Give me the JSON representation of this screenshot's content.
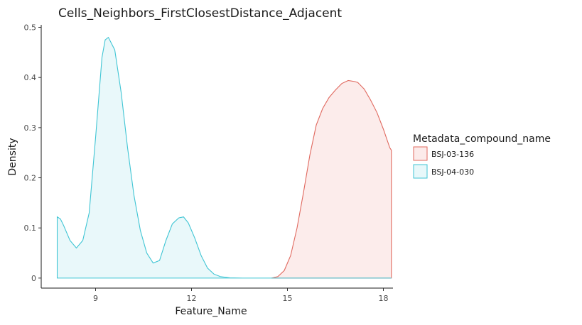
{
  "chart_data": {
    "type": "area",
    "title": "Cells_Neighbors_FirstClosestDistance_Adjacent",
    "xlabel": "Feature_Name",
    "ylabel": "Density",
    "xlim": [
      7.3,
      18.3
    ],
    "ylim": [
      -0.02,
      0.505
    ],
    "x_ticks": [
      9,
      12,
      15,
      18
    ],
    "y_ticks": [
      0,
      0.1,
      0.2,
      0.3,
      0.4,
      0.5
    ],
    "x_tick_labels": [
      "9",
      "12",
      "15",
      "18"
    ],
    "y_tick_labels": [
      "0",
      "0.1",
      "0.2",
      "0.3",
      "0.4",
      "0.5"
    ],
    "grid": false,
    "legend": {
      "title": "Metadata_compound_name",
      "position": "right"
    },
    "series": [
      {
        "name": "BSJ-03-136",
        "line_color": "#E0695F",
        "fill_color": "#FCEBEA",
        "x": [
          14.5,
          14.7,
          14.9,
          15.1,
          15.3,
          15.5,
          15.7,
          15.9,
          16.1,
          16.3,
          16.5,
          16.7,
          16.9,
          17.1,
          17.2,
          17.4,
          17.6,
          17.8,
          18.0,
          18.2,
          18.25
        ],
        "values": [
          0.0,
          0.003,
          0.015,
          0.045,
          0.1,
          0.17,
          0.245,
          0.305,
          0.338,
          0.36,
          0.375,
          0.388,
          0.394,
          0.392,
          0.39,
          0.377,
          0.355,
          0.33,
          0.297,
          0.26,
          0.255
        ]
      },
      {
        "name": "BSJ-04-030",
        "line_color": "#3FC5D4",
        "fill_color": "#E8F8FA",
        "x": [
          7.8,
          7.9,
          8.0,
          8.2,
          8.4,
          8.6,
          8.8,
          9.0,
          9.2,
          9.3,
          9.4,
          9.6,
          9.8,
          10.0,
          10.2,
          10.4,
          10.6,
          10.8,
          11.0,
          11.2,
          11.4,
          11.6,
          11.75,
          11.9,
          12.1,
          12.3,
          12.5,
          12.7,
          12.9,
          13.2,
          13.6,
          14.0,
          15.0,
          16.0,
          17.0,
          18.0,
          18.25
        ],
        "values": [
          0.122,
          0.118,
          0.105,
          0.075,
          0.06,
          0.075,
          0.13,
          0.28,
          0.44,
          0.475,
          0.48,
          0.455,
          0.37,
          0.26,
          0.165,
          0.095,
          0.05,
          0.03,
          0.035,
          0.075,
          0.108,
          0.12,
          0.122,
          0.11,
          0.08,
          0.045,
          0.02,
          0.008,
          0.003,
          0.0005,
          0.0,
          0.0,
          0.0,
          0.0,
          0.0,
          0.0,
          0.0
        ]
      }
    ]
  }
}
